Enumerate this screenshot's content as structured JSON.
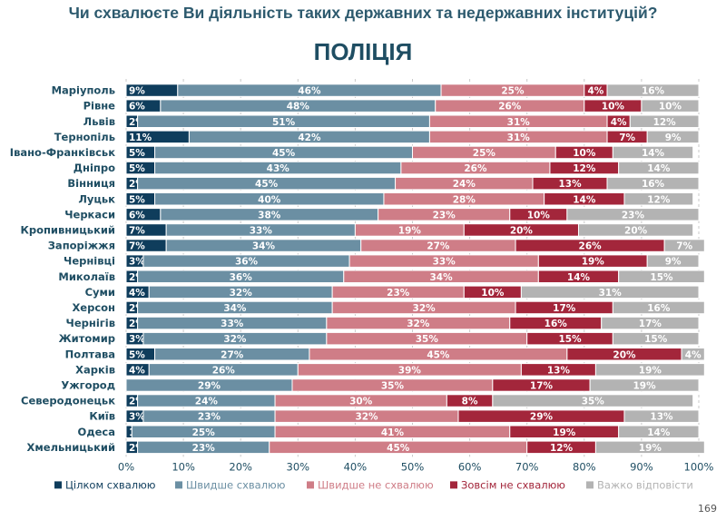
{
  "header": {
    "title": "Чи схвалюєте Ви діяльність таких державних та недержавних інституцій?"
  },
  "page_number": "169",
  "chart_data": {
    "type": "bar",
    "orientation": "horizontal",
    "stacked": true,
    "title": "ПОЛІЦІЯ",
    "categories": [
      "Маріуполь",
      "Рівне",
      "Львів",
      "Тернопіль",
      "Івано-Франківськ",
      "Дніпро",
      "Вінниця",
      "Луцьк",
      "Черкаси",
      "Кропивницький",
      "Запоріжжя",
      "Чернівці",
      "Миколаїв",
      "Суми",
      "Херсон",
      "Чернігів",
      "Житомир",
      "Полтава",
      "Харків",
      "Ужгород",
      "Северодонецьк",
      "Київ",
      "Одеса",
      "Хмельницький"
    ],
    "series": [
      {
        "name": "Цілком схвалюю",
        "color": "#0f3d5c",
        "values": [
          9,
          6,
          2,
          11,
          5,
          5,
          2,
          5,
          6,
          7,
          7,
          3,
          2,
          4,
          2,
          2,
          3,
          5,
          4,
          0,
          2,
          3,
          1,
          2
        ]
      },
      {
        "name": "Швидше схвалюю",
        "color": "#6b8fa3",
        "values": [
          46,
          48,
          51,
          42,
          45,
          43,
          45,
          40,
          38,
          33,
          34,
          36,
          36,
          32,
          34,
          33,
          32,
          27,
          26,
          29,
          24,
          23,
          25,
          23
        ]
      },
      {
        "name": "Швидше не схвалюю",
        "color": "#cf7d87",
        "values": [
          25,
          26,
          31,
          31,
          25,
          26,
          24,
          28,
          23,
          19,
          27,
          33,
          34,
          23,
          32,
          32,
          35,
          45,
          39,
          35,
          30,
          32,
          41,
          45
        ]
      },
      {
        "name": "Зовсім не схвалюю",
        "color": "#a3263b",
        "values": [
          4,
          10,
          4,
          7,
          10,
          12,
          13,
          14,
          10,
          20,
          26,
          19,
          14,
          10,
          17,
          16,
          15,
          20,
          13,
          17,
          8,
          29,
          19,
          12
        ]
      },
      {
        "name": "Важко відповісти",
        "color": "#b3b3b3",
        "values": [
          16,
          10,
          12,
          9,
          14,
          14,
          16,
          12,
          23,
          20,
          7,
          9,
          15,
          31,
          16,
          17,
          15,
          4,
          19,
          19,
          35,
          13,
          14,
          19
        ]
      }
    ],
    "labels": [
      [
        "9%",
        "46%",
        "25%",
        "4%",
        "16%"
      ],
      [
        "6%",
        "48%",
        "26%",
        "10%",
        "10%"
      ],
      [
        "2%",
        "51%",
        "31%",
        "4%",
        "12%"
      ],
      [
        "11%",
        "42%",
        "31%",
        "7%",
        "9%"
      ],
      [
        "5%",
        "45%",
        "25%",
        "10%",
        "14%"
      ],
      [
        "5%",
        "43%",
        "26%",
        "12%",
        "14%"
      ],
      [
        "2%",
        "45%",
        "24%",
        "13%",
        "16%"
      ],
      [
        "5%",
        "40%",
        "28%",
        "14%",
        "12%"
      ],
      [
        "6%",
        "38%",
        "23%",
        "10%",
        "23%"
      ],
      [
        "7%",
        "33%",
        "19%",
        "20%",
        "20%"
      ],
      [
        "7%",
        "34%",
        "27%",
        "26%",
        "7%"
      ],
      [
        "3%",
        "36%",
        "33%",
        "19%",
        "9%"
      ],
      [
        "2%",
        "36%",
        "34%",
        "14%",
        "15%"
      ],
      [
        "4%",
        "32%",
        "23%",
        "10%",
        "31%"
      ],
      [
        "2%",
        "34%",
        "32%",
        "17%",
        "16%"
      ],
      [
        "2%",
        "33%",
        "32%",
        "16%",
        "17%"
      ],
      [
        "3%",
        "32%",
        "35%",
        "15%",
        "15%"
      ],
      [
        "5%",
        "27%",
        "45%",
        "20%",
        "4%"
      ],
      [
        "4%",
        "26%",
        "39%",
        "13%",
        "19%"
      ],
      [
        "",
        "29%",
        "35%",
        "17%",
        "19%"
      ],
      [
        "2%",
        "24%",
        "30%",
        "8%",
        "35%"
      ],
      [
        "3%",
        "23%",
        "32%",
        "29%",
        "13%"
      ],
      [
        "1%",
        "25%",
        "41%",
        "19%",
        "14%"
      ],
      [
        "2%",
        "23%",
        "45%",
        "12%",
        "19%"
      ]
    ],
    "x_ticks": [
      "0%",
      "10%",
      "20%",
      "30%",
      "40%",
      "50%",
      "60%",
      "70%",
      "80%",
      "90%",
      "100%"
    ],
    "xlim": [
      0,
      100
    ],
    "grid": true,
    "legend_position": "bottom"
  }
}
